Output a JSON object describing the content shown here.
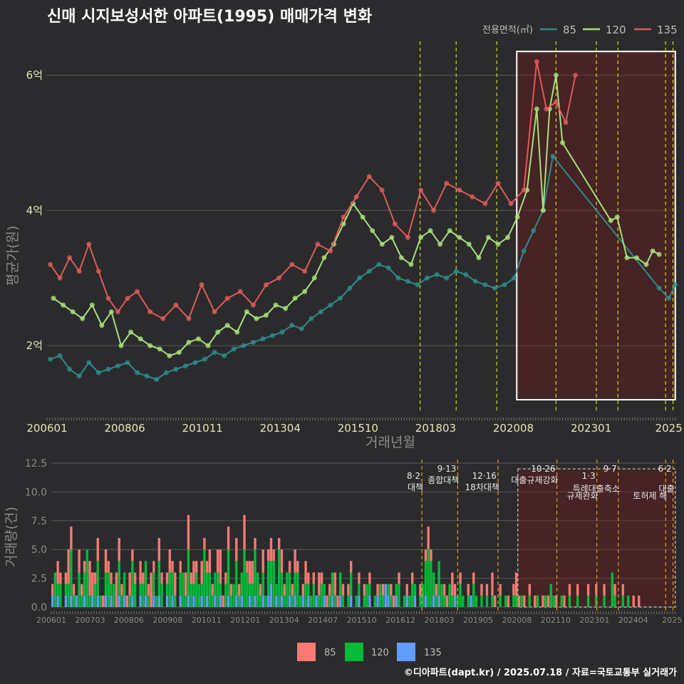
{
  "title": "신매 시지보성서한 아파트(1995) 매매가격 변화",
  "legend": {
    "title": "전용면적(㎡)",
    "items": [
      {
        "label": "85",
        "color": "#2e8b8b"
      },
      {
        "label": "120",
        "color": "#a8e07a"
      },
      {
        "label": "135",
        "color": "#e05a5a"
      }
    ]
  },
  "footer": "©디아파트(dapt.kr) / 2025.07.18 / 자료=국토교통부 실거래가",
  "chart_data": [
    {
      "type": "line",
      "title": "신매 시지보성서한 아파트(1995) 매매가격 변화",
      "xlabel": "거래년월",
      "ylabel": "평균가(원)",
      "x_tick_labels": [
        "200601",
        "200806",
        "201011",
        "201304",
        "201510",
        "201803",
        "202008",
        "202301",
        "2025"
      ],
      "y_tick_labels": [
        "2억",
        "4억",
        "6억"
      ],
      "y_ticks": [
        2,
        4,
        6
      ],
      "ylim": [
        1.0,
        6.5
      ],
      "xlim": [
        2006.0,
        2025.55
      ],
      "policy_lines": [
        2017.58,
        2018.7,
        2019.96,
        2021.8,
        2023.05,
        2023.72,
        2025.2,
        2025.43
      ],
      "highlight_range": [
        2020.58,
        2025.5
      ],
      "highlight_y": [
        1.2,
        6.35
      ],
      "series": [
        {
          "name": "85",
          "color": "#2e8b8b",
          "x": [
            2006.1,
            2006.4,
            2006.7,
            2007.0,
            2007.3,
            2007.6,
            2007.9,
            2008.2,
            2008.5,
            2008.8,
            2009.1,
            2009.4,
            2009.7,
            2010.0,
            2010.3,
            2010.6,
            2010.9,
            2011.2,
            2011.5,
            2011.8,
            2012.1,
            2012.4,
            2012.7,
            2013.0,
            2013.3,
            2013.6,
            2013.9,
            2014.2,
            2014.5,
            2014.8,
            2015.1,
            2015.4,
            2015.7,
            2016.0,
            2016.3,
            2016.6,
            2016.9,
            2017.2,
            2017.5,
            2017.8,
            2018.1,
            2018.4,
            2018.7,
            2019.0,
            2019.3,
            2019.6,
            2019.9,
            2020.2,
            2020.5,
            2020.8,
            2021.1,
            2021.4,
            2021.7,
            2025.0,
            2025.3,
            2025.5
          ],
          "values": [
            1.8,
            1.85,
            1.65,
            1.55,
            1.75,
            1.6,
            1.65,
            1.7,
            1.75,
            1.6,
            1.55,
            1.5,
            1.6,
            1.65,
            1.7,
            1.75,
            1.8,
            1.9,
            1.85,
            1.95,
            2.0,
            2.05,
            2.1,
            2.15,
            2.2,
            2.3,
            2.25,
            2.4,
            2.5,
            2.6,
            2.7,
            2.85,
            3.0,
            3.1,
            3.2,
            3.15,
            3.0,
            2.95,
            2.9,
            3.0,
            3.05,
            3.0,
            3.1,
            3.05,
            2.95,
            2.9,
            2.85,
            2.9,
            3.0,
            3.4,
            3.7,
            4.0,
            4.8,
            2.85,
            2.7,
            2.9
          ]
        },
        {
          "name": "120",
          "color": "#a8e07a",
          "x": [
            2006.2,
            2006.5,
            2006.8,
            2007.1,
            2007.4,
            2007.7,
            2008.0,
            2008.3,
            2008.6,
            2008.9,
            2009.2,
            2009.5,
            2009.8,
            2010.1,
            2010.4,
            2010.7,
            2011.0,
            2011.3,
            2011.6,
            2011.9,
            2012.2,
            2012.5,
            2012.8,
            2013.1,
            2013.4,
            2013.7,
            2014.0,
            2014.3,
            2014.6,
            2014.9,
            2015.2,
            2015.5,
            2015.8,
            2016.1,
            2016.4,
            2016.7,
            2017.0,
            2017.3,
            2017.6,
            2017.9,
            2018.2,
            2018.5,
            2018.8,
            2019.1,
            2019.4,
            2019.7,
            2020.0,
            2020.3,
            2020.6,
            2020.9,
            2021.2,
            2021.4,
            2021.6,
            2021.8,
            2022.0,
            2023.5,
            2023.7,
            2024.0,
            2024.3,
            2024.6,
            2024.8,
            2025.0
          ],
          "values": [
            2.7,
            2.6,
            2.5,
            2.4,
            2.6,
            2.3,
            2.5,
            2.0,
            2.2,
            2.1,
            2.0,
            1.95,
            1.85,
            1.9,
            2.05,
            2.1,
            2.0,
            2.2,
            2.3,
            2.2,
            2.5,
            2.4,
            2.45,
            2.6,
            2.55,
            2.7,
            2.8,
            3.0,
            3.3,
            3.5,
            3.8,
            4.1,
            3.9,
            3.7,
            3.5,
            3.6,
            3.3,
            3.2,
            3.6,
            3.7,
            3.5,
            3.7,
            3.6,
            3.5,
            3.3,
            3.6,
            3.5,
            3.6,
            3.9,
            4.3,
            5.5,
            4.0,
            5.5,
            6.0,
            5.0,
            3.85,
            3.9,
            3.3,
            3.3,
            3.2,
            3.4,
            3.35
          ]
        },
        {
          "name": "135",
          "color": "#e05a5a",
          "x": [
            2006.1,
            2006.4,
            2006.7,
            2007.0,
            2007.3,
            2007.6,
            2007.9,
            2008.2,
            2008.5,
            2008.8,
            2009.2,
            2009.6,
            2010.0,
            2010.4,
            2010.8,
            2011.2,
            2011.6,
            2012.0,
            2012.4,
            2012.8,
            2013.2,
            2013.6,
            2014.0,
            2014.4,
            2014.8,
            2015.2,
            2015.6,
            2016.0,
            2016.4,
            2016.8,
            2017.2,
            2017.6,
            2018.0,
            2018.4,
            2018.8,
            2019.2,
            2019.6,
            2020.0,
            2020.4,
            2020.8,
            2021.2,
            2021.5,
            2021.8,
            2022.1,
            2022.4
          ],
          "values": [
            3.2,
            3.0,
            3.3,
            3.1,
            3.5,
            3.1,
            2.7,
            2.5,
            2.7,
            2.8,
            2.5,
            2.4,
            2.6,
            2.4,
            2.9,
            2.5,
            2.7,
            2.8,
            2.6,
            2.9,
            3.0,
            3.2,
            3.1,
            3.5,
            3.4,
            3.9,
            4.2,
            4.5,
            4.3,
            3.8,
            3.6,
            4.3,
            4.0,
            4.4,
            4.3,
            4.2,
            4.1,
            4.4,
            4.1,
            4.3,
            6.2,
            5.5,
            5.6,
            5.3,
            6.0
          ]
        }
      ]
    },
    {
      "type": "bar",
      "xlabel": "",
      "ylabel": "거래량(건)",
      "x_tick_labels": [
        "200601",
        "200703",
        "200806",
        "200908",
        "201011",
        "201201",
        "201304",
        "201407",
        "201510",
        "201612",
        "201803",
        "201905",
        "202008",
        "202110",
        "202301",
        "202404",
        "2025"
      ],
      "y_tick_labels": [
        "0.0",
        "2.5",
        "5.0",
        "7.5",
        "10.0",
        "12.5"
      ],
      "y_ticks": [
        0,
        2.5,
        5,
        7.5,
        10,
        12.5
      ],
      "ylim": [
        0,
        12.5
      ],
      "xlim": [
        2006.0,
        2025.55
      ],
      "policy_annotations": [
        {
          "x": 2017.58,
          "date": "8·2",
          "label": "대책"
        },
        {
          "x": 2018.7,
          "date": "9·13",
          "label": "종합대책"
        },
        {
          "x": 2019.96,
          "date": "12·16",
          "label": "18차대책"
        },
        {
          "x": 2021.8,
          "date": "10·26",
          "label": "대출규제강화"
        },
        {
          "x": 2023.05,
          "date": "1·3",
          "label": "규제완화"
        },
        {
          "x": 2023.72,
          "date": "9·7",
          "label": "특례대출축소"
        },
        {
          "x": 2025.2,
          "date": "",
          "label": "토허제 해"
        },
        {
          "x": 2025.43,
          "date": "6·2",
          "label": "대출"
        }
      ],
      "highlight_range": [
        2020.58,
        2025.5
      ],
      "highlight_y": [
        0,
        12
      ],
      "series": [
        {
          "name": "85",
          "color": "#f87a72",
          "values_note": "monthly counts"
        },
        {
          "name": "120",
          "color": "#00ba38",
          "values_note": "monthly counts"
        },
        {
          "name": "135",
          "color": "#619cff",
          "values_note": "monthly counts"
        }
      ],
      "monthly": {
        "start": 2006.0,
        "step": 0.0833,
        "s85": [
          1,
          0,
          2,
          1,
          0,
          1,
          3,
          2,
          1,
          0,
          2,
          1,
          1,
          0,
          3,
          2,
          1,
          2,
          0,
          1,
          2,
          1,
          1,
          0,
          3,
          2,
          1,
          0,
          1,
          2,
          1,
          1,
          0,
          2,
          1,
          0,
          1,
          3,
          1,
          0,
          2,
          1,
          0,
          1,
          2,
          1,
          2,
          0,
          1,
          0,
          2,
          3,
          1,
          2,
          1,
          0,
          2,
          1,
          1,
          2,
          1,
          0,
          2,
          3,
          1,
          1,
          2,
          1,
          0,
          2,
          1,
          0,
          3,
          1,
          2,
          2,
          1,
          0,
          1,
          2,
          0,
          1,
          2,
          1,
          0,
          1,
          2,
          1,
          0,
          1,
          1,
          2,
          1,
          0,
          1,
          2,
          1,
          0,
          1,
          0,
          2,
          1,
          0,
          1,
          1,
          0,
          2,
          1,
          0,
          1,
          0,
          1,
          1,
          0,
          0,
          1,
          0,
          1,
          0,
          1,
          0,
          0,
          1,
          0,
          1,
          0,
          0,
          1,
          1,
          0,
          1,
          0,
          0,
          1,
          0,
          1,
          0,
          0,
          1,
          0,
          1,
          2,
          1,
          0,
          1,
          0,
          0,
          1,
          1,
          0,
          2,
          1,
          0,
          1,
          0,
          0,
          1,
          0,
          1,
          0,
          0,
          1,
          0,
          1,
          0,
          2,
          1,
          0,
          1,
          0,
          0,
          1,
          0,
          1,
          2,
          1,
          0,
          1,
          0,
          1,
          0,
          1,
          0,
          0,
          1,
          0,
          1,
          0,
          0,
          1,
          0,
          0,
          1,
          0,
          1,
          0,
          0,
          1,
          0,
          0,
          0,
          1,
          0,
          0,
          1,
          0,
          0,
          1,
          0,
          0,
          0,
          1,
          0,
          0,
          1,
          0,
          0,
          0,
          1,
          0,
          1
        ],
        "s120": [
          0,
          3,
          1,
          2,
          0,
          1,
          2,
          4,
          1,
          0,
          3,
          1,
          2,
          5,
          1,
          0,
          2,
          3,
          1,
          0,
          2,
          3,
          1,
          2,
          0,
          3,
          1,
          2,
          0,
          1,
          3,
          2,
          0,
          1,
          2,
          3,
          1,
          0,
          2,
          1,
          3,
          2,
          0,
          1,
          3,
          2,
          1,
          0,
          2,
          3,
          1,
          4,
          2,
          1,
          3,
          2,
          1,
          5,
          2,
          3,
          1,
          2,
          3,
          1,
          0,
          2,
          4,
          1,
          2,
          3,
          1,
          2,
          5,
          3,
          1,
          2,
          4,
          3,
          1,
          2,
          1,
          3,
          2,
          4,
          1,
          5,
          2,
          1,
          3,
          2,
          1,
          2,
          3,
          1,
          0,
          2,
          1,
          1,
          2,
          0,
          1,
          2,
          1,
          0,
          1,
          2,
          1,
          0,
          2,
          1,
          0,
          1,
          2,
          0,
          1,
          1,
          0,
          1,
          2,
          1,
          0,
          1,
          0,
          2,
          1,
          0,
          1,
          1,
          0,
          1,
          2,
          0,
          1,
          0,
          1,
          2,
          1,
          0,
          1,
          2,
          3,
          5,
          4,
          2,
          1,
          3,
          2,
          1,
          0,
          2,
          1,
          0,
          1,
          2,
          1,
          0,
          1,
          0,
          2,
          1,
          0,
          1,
          0,
          1,
          0,
          1,
          0,
          0,
          1,
          0,
          1,
          0,
          0,
          1,
          1,
          0,
          1,
          0,
          0,
          1,
          0,
          0,
          1,
          0,
          0,
          1,
          0,
          2,
          1,
          0,
          0,
          1,
          0,
          0,
          1,
          0,
          0,
          1,
          0,
          0,
          0,
          1,
          0,
          0,
          1,
          0,
          0,
          1,
          0,
          0,
          3,
          1,
          0,
          0,
          1,
          0,
          1
        ],
        "s135": [
          1,
          0,
          1,
          0,
          0,
          1,
          0,
          1,
          0,
          1,
          0,
          0,
          1,
          0,
          0,
          1,
          0,
          1,
          0,
          0,
          1,
          0,
          1,
          0,
          0,
          1,
          0,
          1,
          0,
          0,
          1,
          0,
          0,
          1,
          0,
          1,
          0,
          0,
          1,
          0,
          1,
          0,
          0,
          1,
          0,
          1,
          0,
          0,
          1,
          0,
          0,
          1,
          0,
          1,
          0,
          0,
          1,
          0,
          1,
          0,
          0,
          1,
          0,
          1,
          0,
          0,
          1,
          0,
          0,
          1,
          0,
          1,
          0,
          0,
          1,
          0,
          1,
          0,
          0,
          1,
          0,
          1,
          2,
          0,
          1,
          0,
          1,
          0,
          0,
          1,
          0,
          1,
          0,
          0,
          1,
          0,
          1,
          0,
          0,
          1,
          0,
          0,
          1,
          0,
          0,
          1,
          0,
          0,
          1,
          0,
          0,
          0,
          1,
          0,
          0,
          1,
          0,
          0,
          0,
          1,
          0,
          0,
          1,
          0,
          0,
          2,
          1,
          0,
          0,
          1,
          0,
          0,
          0,
          1,
          0,
          0,
          1,
          0,
          0,
          0,
          1,
          0,
          0,
          1,
          0,
          1,
          0,
          0,
          0,
          0,
          0,
          1,
          0,
          0,
          0,
          0,
          0,
          1,
          0,
          0,
          0,
          0,
          0,
          0,
          0,
          0,
          0,
          0,
          0,
          0,
          0,
          0,
          0,
          0,
          0,
          0,
          0,
          0,
          0,
          0,
          0,
          0,
          0,
          0,
          0,
          0,
          0,
          0,
          0,
          0,
          0,
          0,
          0,
          0,
          0,
          0,
          0,
          0,
          0,
          0,
          0,
          0,
          0,
          0,
          0,
          0,
          0,
          0,
          0,
          0,
          0,
          0,
          0,
          0,
          0,
          0,
          0,
          0,
          0,
          0,
          0,
          0,
          0,
          0,
          0
        ]
      }
    }
  ]
}
